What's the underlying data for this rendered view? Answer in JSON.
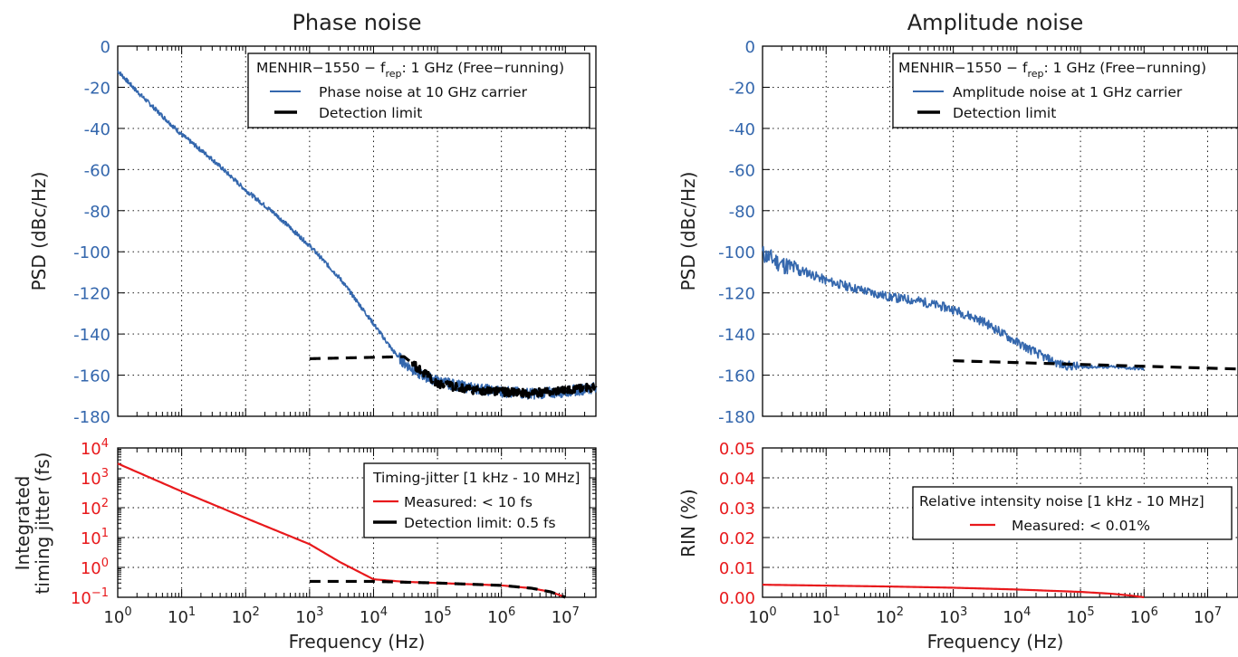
{
  "colors": {
    "psd": "#3467ad",
    "integrated": "#e8191c",
    "limit": "#000000",
    "text": "#222222"
  },
  "chart_data": [
    {
      "id": "phase",
      "type": "line",
      "title": "Phase noise",
      "xlabel": "Frequency (Hz)",
      "ylabel": "PSD (dBc/Hz)",
      "xscale": "log",
      "xlim": [
        1,
        30000000
      ],
      "ylim": [
        -180,
        0
      ],
      "grid": true,
      "x_ticks": [
        "10^0",
        "10^1",
        "10^2",
        "10^3",
        "10^4",
        "10^5",
        "10^6",
        "10^7"
      ],
      "y_ticks": [
        "0",
        "-20",
        "-40",
        "-60",
        "-80",
        "-100",
        "-120",
        "-140",
        "-160",
        "-180"
      ],
      "legend": {
        "placement": "top-right",
        "title_main": "MENHIR−1550 − f",
        "title_sub": "rep",
        "title_tail": ": 1 GHz (Free−running)",
        "entries": [
          "Phase noise at 10 GHz carrier",
          "Detection limit"
        ]
      },
      "series": [
        {
          "name": "Phase noise at 10 GHz carrier",
          "color": "#3467ad",
          "style": "solid",
          "x": [
            1,
            2,
            5,
            10,
            30,
            100,
            300,
            1000,
            3000,
            10000,
            20000,
            30000,
            50000,
            100000,
            300000,
            1000000,
            3000000,
            10000000,
            30000000
          ],
          "y": [
            -12,
            -22,
            -34,
            -43,
            -55,
            -70,
            -82,
            -97,
            -113,
            -135,
            -148,
            -154,
            -159,
            -163,
            -166,
            -168,
            -169,
            -168,
            -166
          ]
        },
        {
          "name": "Detection limit",
          "color": "#000000",
          "style": "dashed",
          "x": [
            1000,
            30000,
            100000,
            300000,
            1000000,
            3000000,
            10000000,
            30000000
          ],
          "y": [
            -152,
            -151,
            -164,
            -167,
            -168,
            -169,
            -167,
            -166
          ]
        }
      ]
    },
    {
      "id": "amplitude",
      "type": "line",
      "title": "Amplitude noise",
      "xlabel": "",
      "ylabel": "PSD (dBc/Hz)",
      "xscale": "log",
      "xlim": [
        1,
        30000000
      ],
      "ylim": [
        -180,
        0
      ],
      "grid": true,
      "x_ticks": [],
      "y_ticks": [
        "0",
        "-20",
        "-40",
        "-60",
        "-80",
        "-100",
        "-120",
        "-140",
        "-160",
        "-180"
      ],
      "legend": {
        "placement": "top-right",
        "title_main": "MENHIR−1550 − f",
        "title_sub": "rep",
        "title_tail": ": 1 GHz (Free−running)",
        "entries": [
          "Amplitude noise at 1 GHz carrier",
          "Detection limit"
        ]
      },
      "series": [
        {
          "name": "Amplitude noise at 1 GHz carrier",
          "color": "#3467ad",
          "style": "solid",
          "x": [
            1,
            2,
            5,
            10,
            30,
            100,
            300,
            1000,
            3000,
            10000,
            30000,
            50000,
            100000,
            300000,
            1000000
          ],
          "y": [
            -101,
            -106,
            -110,
            -114,
            -118,
            -122,
            -124,
            -128,
            -134,
            -144,
            -152,
            -155,
            -156,
            -156,
            -157
          ]
        },
        {
          "name": "Detection limit",
          "color": "#000000",
          "style": "dashed",
          "x": [
            1000,
            30000000
          ],
          "y": [
            -153,
            -157
          ]
        }
      ]
    },
    {
      "id": "jitter",
      "type": "line",
      "title": "",
      "xlabel": "Frequency (Hz)",
      "ylabel_lines": [
        "Integrated",
        "timing jitter (fs)"
      ],
      "xscale": "log",
      "yscale": "log",
      "xlim": [
        1,
        30000000
      ],
      "ylim": [
        0.1,
        10000
      ],
      "grid": true,
      "x_ticks": [
        "10^0",
        "10^1",
        "10^2",
        "10^3",
        "10^4",
        "10^5",
        "10^6",
        "10^7"
      ],
      "y_ticks": [
        "10^4",
        "10^3",
        "10^2",
        "10^1",
        "10^0",
        "10^−1"
      ],
      "legend": {
        "placement": "top-right",
        "title": "Timing-jitter [1 kHz - 10 MHz]",
        "entries": [
          "Measured: < 10 fs",
          "Detection limit: 0.5 fs"
        ]
      },
      "series": [
        {
          "name": "Measured: < 10 fs",
          "color": "#e8191c",
          "style": "solid",
          "x": [
            1,
            10,
            100,
            1000,
            3000,
            10000,
            30000,
            100000,
            1000000,
            3000000,
            6000000,
            10000000
          ],
          "y": [
            3000,
            350,
            45,
            6,
            1.5,
            0.4,
            0.33,
            0.3,
            0.25,
            0.2,
            0.15,
            0.1
          ]
        },
        {
          "name": "Detection limit: 0.5 fs",
          "color": "#000000",
          "style": "dashed",
          "x": [
            1000,
            10000,
            30000,
            100000,
            1000000,
            3000000,
            6000000,
            10000000
          ],
          "y": [
            0.34,
            0.34,
            0.32,
            0.3,
            0.25,
            0.2,
            0.15,
            0.1
          ]
        }
      ]
    },
    {
      "id": "rin",
      "type": "line",
      "title": "",
      "xlabel": "Frequency (Hz)",
      "ylabel": "RIN (%)",
      "xscale": "log",
      "xlim": [
        1,
        30000000
      ],
      "ylim": [
        0,
        0.05
      ],
      "grid": true,
      "x_ticks": [
        "10^0",
        "10^1",
        "10^2",
        "10^3",
        "10^4",
        "10^5",
        "10^6",
        "10^7"
      ],
      "y_ticks": [
        "0.05",
        "0.04",
        "0.03",
        "0.02",
        "0.01",
        "0.00"
      ],
      "legend": {
        "placement": "top-right",
        "title": "Relative intensity noise [1 kHz - 10 MHz]",
        "entries": [
          "Measured: < 0.01%"
        ]
      },
      "series": [
        {
          "name": "Measured: < 0.01%",
          "color": "#e8191c",
          "style": "solid",
          "x": [
            1,
            10,
            100,
            1000,
            10000,
            100000,
            300000,
            600000,
            1000000
          ],
          "y": [
            0.0042,
            0.0039,
            0.0036,
            0.0032,
            0.0026,
            0.0018,
            0.0012,
            0.0006,
            0.0
          ]
        }
      ]
    }
  ]
}
